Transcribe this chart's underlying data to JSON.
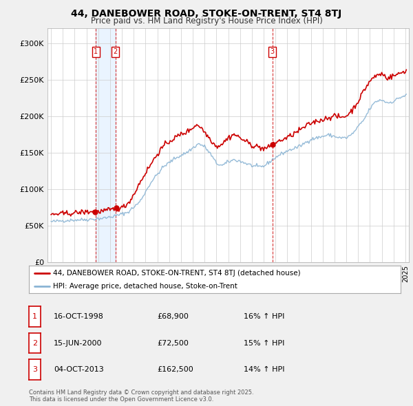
{
  "title_line1": "44, DANEBOWER ROAD, STOKE-ON-TRENT, ST4 8TJ",
  "title_line2": "Price paid vs. HM Land Registry's House Price Index (HPI)",
  "ylim": [
    0,
    320000
  ],
  "yticks": [
    0,
    50000,
    100000,
    150000,
    200000,
    250000,
    300000
  ],
  "ytick_labels": [
    "£0",
    "£50K",
    "£100K",
    "£150K",
    "£200K",
    "£250K",
    "£300K"
  ],
  "background_color": "#f0f0f0",
  "plot_bg_color": "#ffffff",
  "grid_color": "#cccccc",
  "sale_color": "#cc0000",
  "hpi_color": "#8ab4d4",
  "hpi_fill_color": "#c8dff0",
  "vline_color": "#cc0000",
  "shade_color": "#ddeeff",
  "purchases": [
    {
      "date_num": 1998.79,
      "price": 68900,
      "label": "1"
    },
    {
      "date_num": 2000.46,
      "price": 72500,
      "label": "2"
    },
    {
      "date_num": 2013.75,
      "price": 162500,
      "label": "3"
    }
  ],
  "legend_sale_label": "44, DANEBOWER ROAD, STOKE-ON-TRENT, ST4 8TJ (detached house)",
  "legend_hpi_label": "HPI: Average price, detached house, Stoke-on-Trent",
  "table_rows": [
    {
      "num": "1",
      "date": "16-OCT-1998",
      "price": "£68,900",
      "hpi": "16% ↑ HPI"
    },
    {
      "num": "2",
      "date": "15-JUN-2000",
      "price": "£72,500",
      "hpi": "15% ↑ HPI"
    },
    {
      "num": "3",
      "date": "04-OCT-2013",
      "price": "£162,500",
      "hpi": "14% ↑ HPI"
    }
  ],
  "footnote": "Contains HM Land Registry data © Crown copyright and database right 2025.\nThis data is licensed under the Open Government Licence v3.0."
}
